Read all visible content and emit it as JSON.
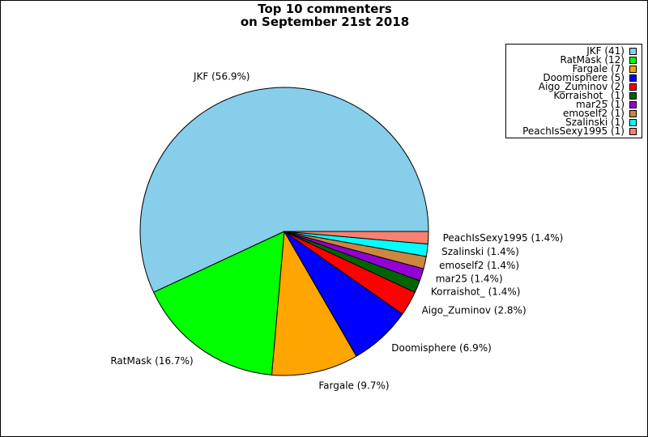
{
  "chart_data": {
    "type": "pie",
    "title": [
      "Top 10 commenters",
      "on September 21st 2018"
    ],
    "legend_position": "top-right",
    "slices": [
      {
        "name": "JKF",
        "count": 41,
        "percent": 56.9,
        "color": "#87ceeb",
        "legend_label": "JKF (41)",
        "slice_label": "JKF (56.9%)"
      },
      {
        "name": "RatMask",
        "count": 12,
        "percent": 16.7,
        "color": "#00ff00",
        "legend_label": "RatMask (12)",
        "slice_label": "RatMask (16.7%)"
      },
      {
        "name": "Fargale",
        "count": 7,
        "percent": 9.7,
        "color": "#ffa500",
        "legend_label": "Fargale (7)",
        "slice_label": "Fargale (9.7%)"
      },
      {
        "name": "Doomisphere",
        "count": 5,
        "percent": 6.9,
        "color": "#0000ff",
        "legend_label": "Doomisphere (5)",
        "slice_label": "Doomisphere (6.9%)"
      },
      {
        "name": "Aigo_Zuminov",
        "count": 2,
        "percent": 2.8,
        "color": "#ff0000",
        "legend_label": "Aigo_Zuminov (2)",
        "slice_label": "Aigo_Zuminov (2.8%)"
      },
      {
        "name": "Korraishot_",
        "count": 1,
        "percent": 1.4,
        "color": "#006400",
        "legend_label": "Korraishot_ (1)",
        "slice_label": "Korraishot_ (1.4%)"
      },
      {
        "name": "mar25",
        "count": 1,
        "percent": 1.4,
        "color": "#9400d3",
        "legend_label": "mar25 (1)",
        "slice_label": "mar25 (1.4%)"
      },
      {
        "name": "emoself2",
        "count": 1,
        "percent": 1.4,
        "color": "#cd853f",
        "legend_label": "emoself2 (1)",
        "slice_label": "emoself2 (1.4%)"
      },
      {
        "name": "Szalinski",
        "count": 1,
        "percent": 1.4,
        "color": "#00ffff",
        "legend_label": "Szalinski (1)",
        "slice_label": "Szalinski (1.4%)"
      },
      {
        "name": "PeachIsSexy1995",
        "count": 1,
        "percent": 1.4,
        "color": "#fa8072",
        "legend_label": "PeachIsSexy1995 (1)",
        "slice_label": "PeachIsSexy1995 (1.4%)"
      }
    ]
  }
}
